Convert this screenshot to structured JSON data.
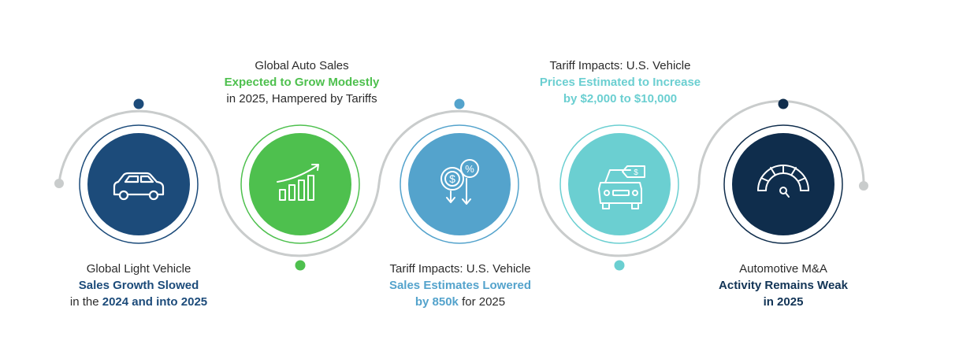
{
  "colors": {
    "navy": "#1c4b7a",
    "green": "#4ec04e",
    "blue": "#54a3cc",
    "teal": "#6bcfd1",
    "dark": "#0f2d4c",
    "connector": "#c9cccc"
  },
  "steps": [
    {
      "icon": "car-icon",
      "caption": {
        "line1": "Global Light Vehicle",
        "line2_bold": "Sales Growth Slowed",
        "line3_pre": "in the ",
        "line3_bold": "2024 and into 2025"
      }
    },
    {
      "icon": "growth-chart-icon",
      "caption": {
        "line1": "Global Auto Sales",
        "line2_bold": "Expected to Grow Modestly",
        "line3": "in  2025, Hampered by Tariffs"
      }
    },
    {
      "icon": "dollar-percent-down-icon",
      "caption": {
        "line1": "Tariff Impacts: U.S. Vehicle",
        "line2_bold": "Sales Estimates Lowered",
        "line3_bold": "by 850k",
        "line3_post": " for 2025"
      }
    },
    {
      "icon": "car-price-tag-icon",
      "caption": {
        "line1": "Tariff Impacts: U.S. Vehicle",
        "line2_bold": "Prices Estimated to Increase",
        "line3_bold": "by $2,000 to $10,000"
      }
    },
    {
      "icon": "speedometer-icon",
      "caption": {
        "line1": "Automotive M&A",
        "line2_bold": "Activity Remains Weak",
        "line3_bold": "in 2025"
      }
    }
  ]
}
